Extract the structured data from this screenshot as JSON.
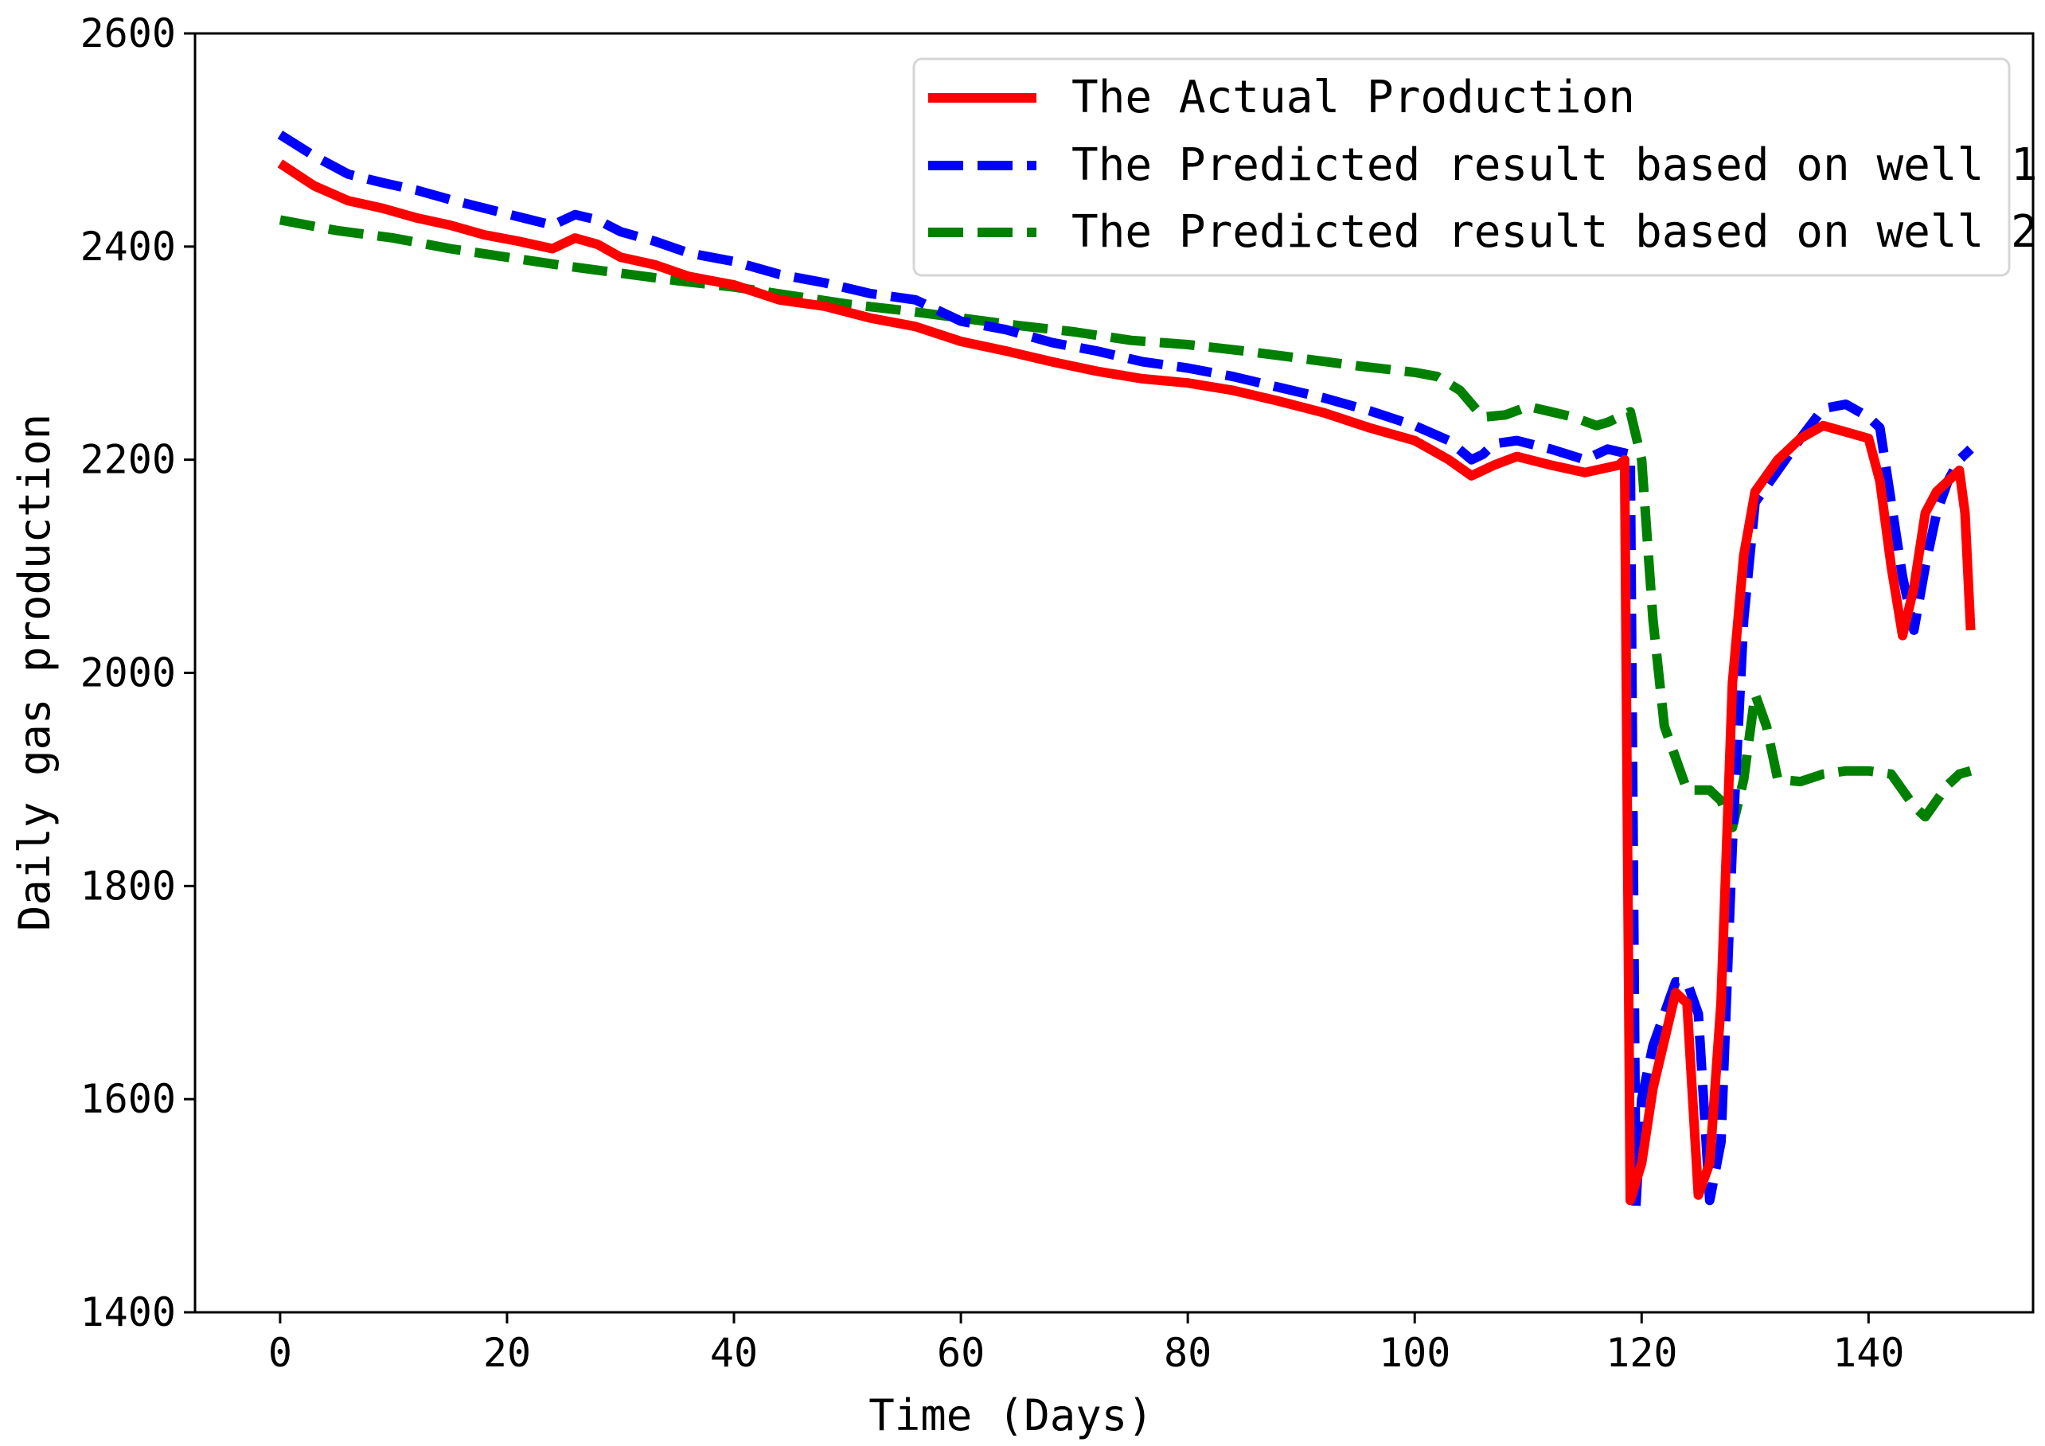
{
  "chart_data": {
    "type": "line",
    "title": "",
    "xlabel": "Time (Days)",
    "ylabel": "Daily gas production",
    "xlim": [
      -7.5,
      154.5
    ],
    "ylim": [
      1400,
      2600
    ],
    "xticks": [
      0,
      20,
      40,
      60,
      80,
      100,
      120,
      140
    ],
    "yticks": [
      1400,
      1600,
      1800,
      2000,
      2200,
      2400,
      2600
    ],
    "grid": false,
    "legend_position": "top-right",
    "series": [
      {
        "name": "The Actual Production",
        "color": "#ff0000",
        "style": "solid",
        "x": [
          0,
          3,
          6,
          9,
          12,
          15,
          18,
          21,
          24,
          26,
          28,
          30,
          33,
          36,
          40,
          44,
          48,
          52,
          56,
          60,
          64,
          68,
          72,
          76,
          80,
          84,
          88,
          92,
          96,
          100,
          103,
          105,
          107,
          109,
          112,
          115,
          118,
          118.5,
          119,
          120,
          121,
          123,
          124,
          125,
          126,
          127,
          128,
          129,
          130,
          132,
          134,
          136,
          138,
          140,
          141,
          142,
          143,
          144,
          145,
          146,
          147,
          148,
          148.5,
          149
        ],
        "y": [
          2478,
          2457,
          2443,
          2436,
          2427,
          2420,
          2411,
          2405,
          2398,
          2408,
          2402,
          2390,
          2383,
          2372,
          2364,
          2350,
          2344,
          2333,
          2325,
          2311,
          2302,
          2292,
          2283,
          2276,
          2272,
          2265,
          2255,
          2244,
          2230,
          2218,
          2200,
          2185,
          2195,
          2203,
          2195,
          2188,
          2195,
          2200,
          1505,
          1540,
          1610,
          1700,
          1690,
          1510,
          1540,
          1690,
          1990,
          2110,
          2170,
          2200,
          2220,
          2232,
          2226,
          2220,
          2180,
          2100,
          2035,
          2080,
          2150,
          2170,
          2180,
          2190,
          2150,
          2040
        ]
      },
      {
        "name": "The Predicted result based on well 1",
        "color": "#0000ff",
        "style": "dashed",
        "x": [
          0,
          3,
          6,
          9,
          12,
          15,
          18,
          21,
          24,
          26,
          28,
          30,
          33,
          36,
          40,
          44,
          48,
          52,
          56,
          60,
          64,
          68,
          72,
          76,
          80,
          84,
          88,
          92,
          96,
          100,
          103,
          105,
          106,
          107,
          109,
          112,
          115,
          117,
          119,
          119.5,
          120,
          121,
          123,
          124,
          125,
          126,
          127,
          128,
          129,
          130,
          132,
          134,
          136,
          138,
          140,
          141,
          142,
          143,
          144,
          145,
          146,
          147,
          148,
          149
        ],
        "y": [
          2505,
          2485,
          2468,
          2460,
          2453,
          2444,
          2436,
          2428,
          2420,
          2430,
          2425,
          2414,
          2405,
          2394,
          2386,
          2374,
          2366,
          2356,
          2350,
          2330,
          2322,
          2310,
          2302,
          2292,
          2286,
          2278,
          2268,
          2258,
          2246,
          2232,
          2218,
          2200,
          2205,
          2215,
          2218,
          2210,
          2200,
          2210,
          2205,
          1500,
          1600,
          1650,
          1710,
          1710,
          1680,
          1505,
          1560,
          1840,
          2050,
          2160,
          2190,
          2220,
          2248,
          2252,
          2240,
          2230,
          2160,
          2090,
          2040,
          2100,
          2150,
          2180,
          2200,
          2210
        ]
      },
      {
        "name": "The Predicted result based on well 2",
        "color": "#008000",
        "style": "dashed",
        "x": [
          0,
          5,
          10,
          15,
          20,
          25,
          30,
          35,
          40,
          45,
          50,
          55,
          60,
          65,
          70,
          75,
          80,
          85,
          90,
          95,
          100,
          102,
          104,
          106,
          108,
          110,
          112,
          114,
          116,
          117,
          118,
          119,
          120,
          121,
          122,
          124,
          126,
          127,
          128,
          129,
          130,
          131,
          132,
          134,
          136,
          138,
          140,
          142,
          143,
          144,
          145,
          146,
          147,
          148,
          149
        ],
        "y": [
          2425,
          2415,
          2408,
          2398,
          2390,
          2382,
          2375,
          2368,
          2362,
          2354,
          2346,
          2340,
          2333,
          2326,
          2320,
          2312,
          2308,
          2302,
          2295,
          2288,
          2282,
          2278,
          2265,
          2240,
          2242,
          2250,
          2245,
          2240,
          2232,
          2235,
          2240,
          2245,
          2200,
          2050,
          1950,
          1890,
          1890,
          1880,
          1855,
          1900,
          1980,
          1950,
          1900,
          1898,
          1905,
          1908,
          1908,
          1905,
          1890,
          1875,
          1865,
          1880,
          1895,
          1905,
          1908
        ]
      }
    ]
  }
}
